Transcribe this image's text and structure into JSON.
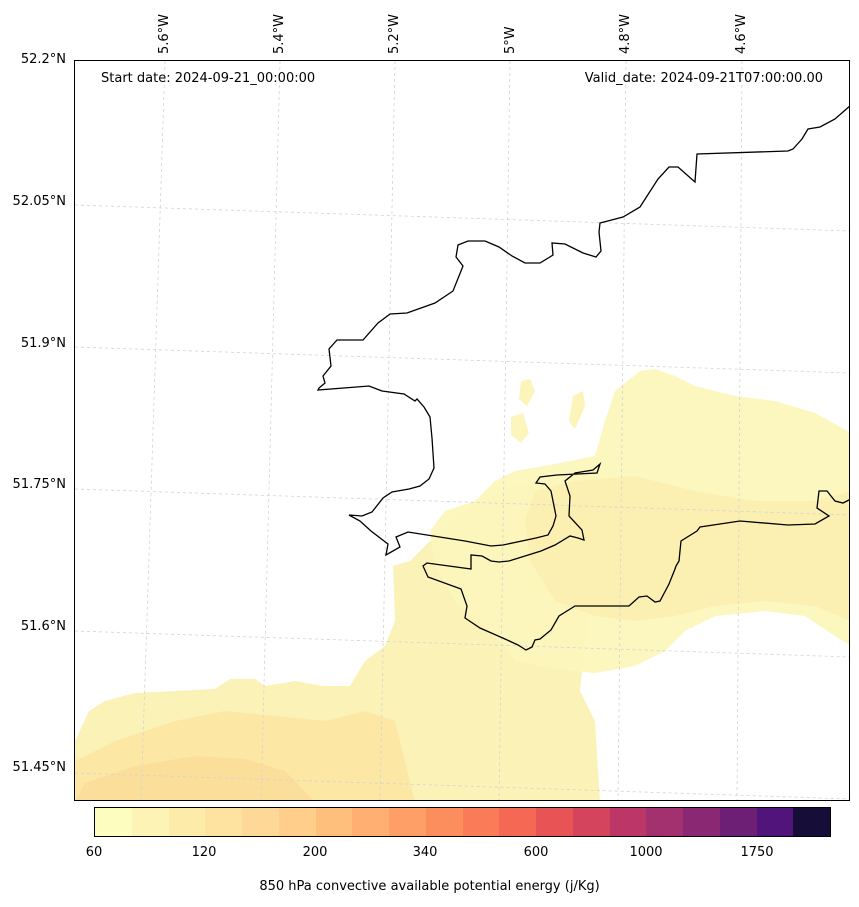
{
  "map": {
    "start_date": "Start date: 2024-09-21_00:00:00",
    "valid_date": "Valid_date: 2024-09-21T07:00:00.00",
    "latitude_labels": [
      "52.2°N",
      "52.05°N",
      "51.9°N",
      "51.75°N",
      "51.6°N",
      "51.45°N"
    ],
    "longitude_labels": [
      "5.6°W",
      "5.4°W",
      "5.2°W",
      "5°W",
      "4.8°W",
      "4.6°W"
    ],
    "field": "850 hPa convective available potential energy",
    "coastline_color": "#000000",
    "grid_color": "#d3d3d3"
  },
  "colorbar": {
    "label": "850 hPa convective available potential energy (j/Kg)",
    "tick_labels": [
      "60",
      "120",
      "200",
      "340",
      "600",
      "1000",
      "1750"
    ],
    "colors": [
      "#fcfdbf",
      "#fcf3b4",
      "#fdebaa",
      "#fde2a0",
      "#fed896",
      "#fece8a",
      "#febf7d",
      "#feaf71",
      "#fd9f67",
      "#fc8e5e",
      "#f97b57",
      "#f46854",
      "#e85456",
      "#d5445d",
      "#bc3768",
      "#a3306f",
      "#8a2874",
      "#6d1f75",
      "#51147b",
      "#160d38"
    ]
  }
}
